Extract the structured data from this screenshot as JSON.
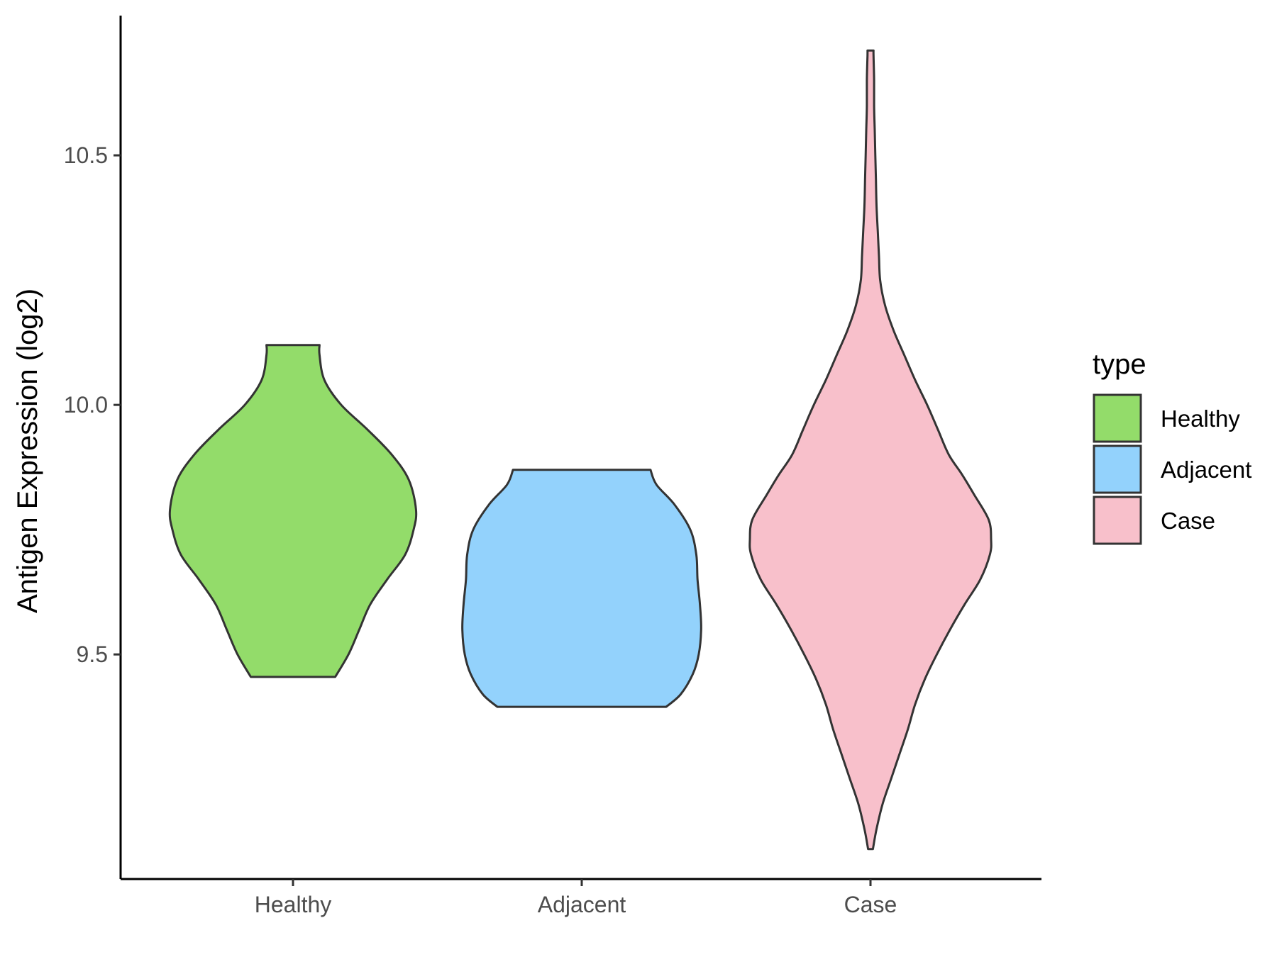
{
  "chart_data": {
    "type": "violin",
    "ylabel": "Antigen Expression (log2)",
    "categories": [
      "Healthy",
      "Adjacent",
      "Case"
    ],
    "yticks": [
      9.5,
      10.0,
      10.5
    ],
    "ylim": [
      9.05,
      10.78
    ],
    "legend": {
      "title": "type",
      "position": "right",
      "entries": [
        {
          "label": "Healthy",
          "color": "#93dc6a"
        },
        {
          "label": "Adjacent",
          "color": "#93d2fc"
        },
        {
          "label": "Case",
          "color": "#f8c0cb"
        }
      ]
    },
    "series": [
      {
        "category": "Healthy",
        "color": "#93dc6a",
        "min": 9.455,
        "max": 10.12,
        "density_profile": [
          [
            9.455,
            0.35
          ],
          [
            9.5,
            0.46
          ],
          [
            9.55,
            0.55
          ],
          [
            9.6,
            0.64
          ],
          [
            9.65,
            0.78
          ],
          [
            9.7,
            0.93
          ],
          [
            9.75,
            1.0
          ],
          [
            9.79,
            1.02
          ],
          [
            9.85,
            0.96
          ],
          [
            9.9,
            0.82
          ],
          [
            9.95,
            0.62
          ],
          [
            10.0,
            0.4
          ],
          [
            10.05,
            0.26
          ],
          [
            10.1,
            0.22
          ],
          [
            10.12,
            0.22
          ]
        ]
      },
      {
        "category": "Adjacent",
        "color": "#93d2fc",
        "min": 9.395,
        "max": 9.87,
        "density_profile": [
          [
            9.395,
            0.7
          ],
          [
            9.42,
            0.82
          ],
          [
            9.46,
            0.92
          ],
          [
            9.5,
            0.97
          ],
          [
            9.55,
            0.99
          ],
          [
            9.6,
            0.98
          ],
          [
            9.65,
            0.96
          ],
          [
            9.7,
            0.95
          ],
          [
            9.75,
            0.9
          ],
          [
            9.8,
            0.77
          ],
          [
            9.84,
            0.62
          ],
          [
            9.87,
            0.57
          ]
        ]
      },
      {
        "category": "Case",
        "color": "#f8c0cb",
        "min": 9.11,
        "max": 10.71,
        "density_profile": [
          [
            9.11,
            0.02
          ],
          [
            9.15,
            0.05
          ],
          [
            9.2,
            0.1
          ],
          [
            9.25,
            0.17
          ],
          [
            9.3,
            0.24
          ],
          [
            9.35,
            0.31
          ],
          [
            9.4,
            0.37
          ],
          [
            9.45,
            0.45
          ],
          [
            9.5,
            0.55
          ],
          [
            9.55,
            0.66
          ],
          [
            9.6,
            0.78
          ],
          [
            9.65,
            0.91
          ],
          [
            9.7,
            0.99
          ],
          [
            9.73,
            1.0
          ],
          [
            9.77,
            0.98
          ],
          [
            9.82,
            0.86
          ],
          [
            9.86,
            0.76
          ],
          [
            9.9,
            0.65
          ],
          [
            9.95,
            0.56
          ],
          [
            10.0,
            0.47
          ],
          [
            10.05,
            0.37
          ],
          [
            10.1,
            0.28
          ],
          [
            10.15,
            0.19
          ],
          [
            10.2,
            0.12
          ],
          [
            10.25,
            0.08
          ],
          [
            10.3,
            0.07
          ],
          [
            10.35,
            0.06
          ],
          [
            10.4,
            0.05
          ],
          [
            10.45,
            0.045
          ],
          [
            10.5,
            0.04
          ],
          [
            10.55,
            0.035
          ],
          [
            10.6,
            0.03
          ],
          [
            10.65,
            0.03
          ],
          [
            10.7,
            0.025
          ],
          [
            10.71,
            0.025
          ]
        ]
      }
    ]
  }
}
